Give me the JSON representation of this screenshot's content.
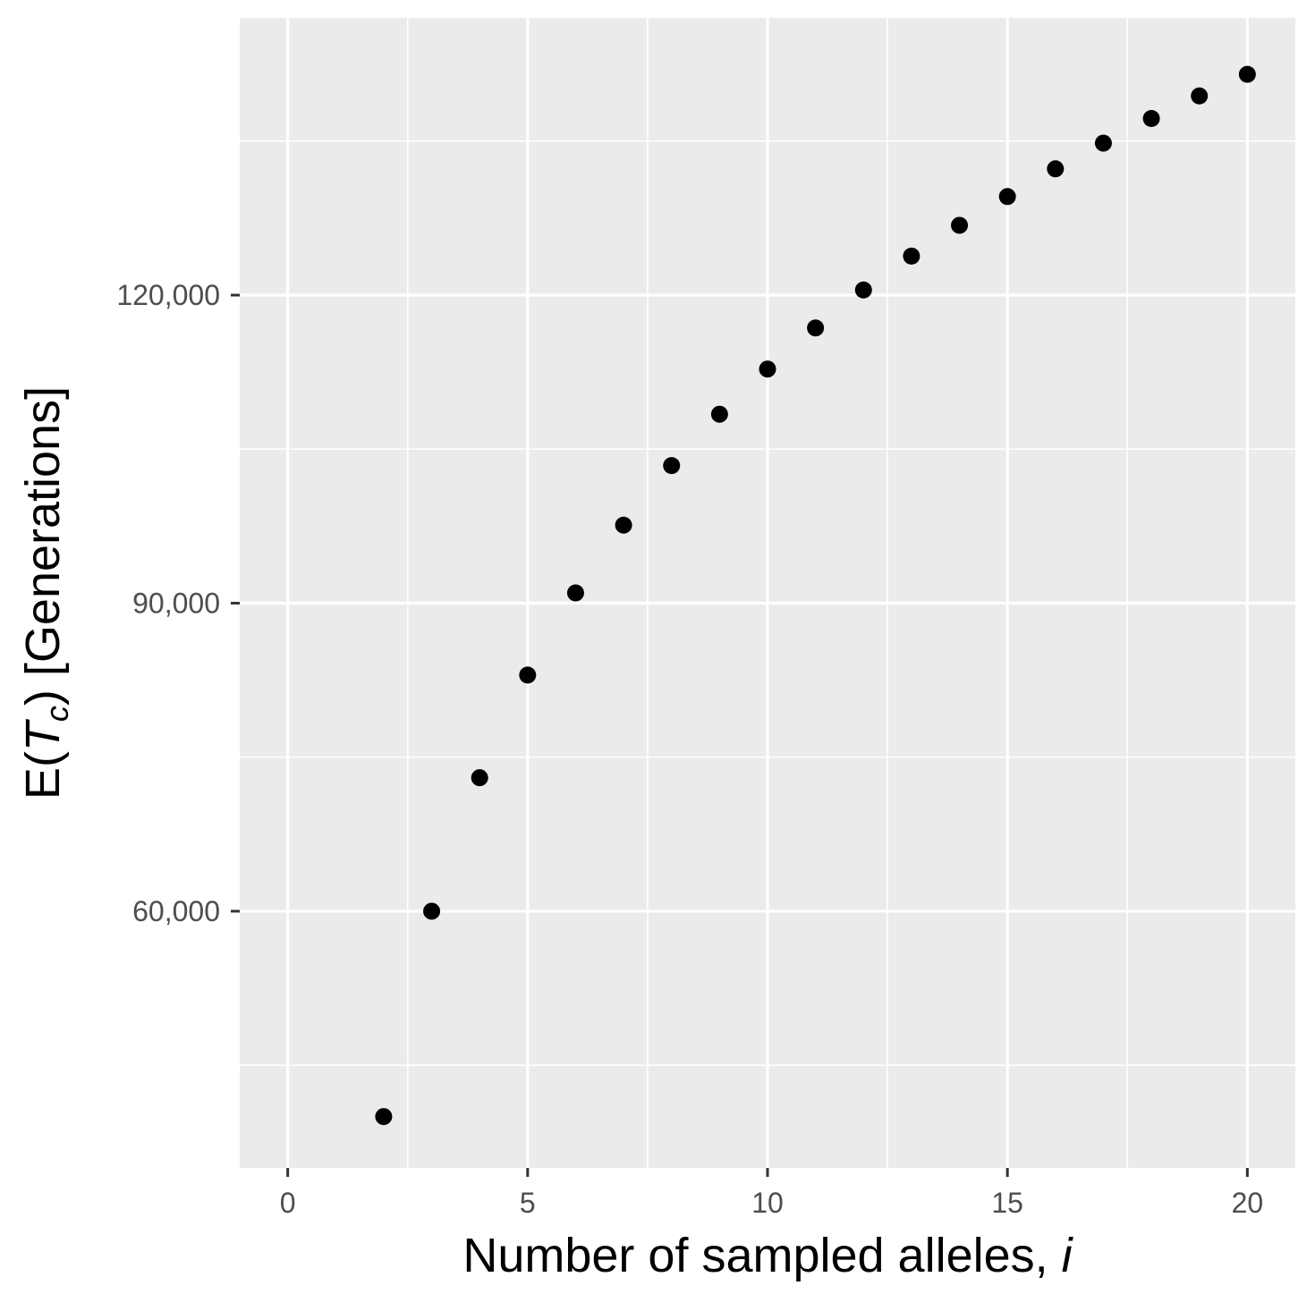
{
  "chart_data": {
    "type": "scatter",
    "title": "",
    "xlabel_parts": [
      "Number of sampled alleles, ",
      "i"
    ],
    "ylabel_parts": [
      "E(",
      "T",
      "c",
      ") [Generations]"
    ],
    "x": [
      2,
      3,
      4,
      5,
      6,
      7,
      8,
      9,
      10,
      11,
      12,
      13,
      14,
      15,
      16,
      17,
      18,
      19,
      20
    ],
    "y": [
      40000,
      60000,
      73000,
      83000,
      91000,
      97600,
      103400,
      108400,
      112800,
      116800,
      120500,
      123800,
      126800,
      129600,
      132300,
      134800,
      137200,
      139400,
      141500
    ],
    "xlim": [
      -1,
      21
    ],
    "ylim": [
      35000,
      147000
    ],
    "x_ticks": [
      0,
      5,
      10,
      15,
      20
    ],
    "x_tick_labels": [
      "0",
      "5",
      "10",
      "15",
      "20"
    ],
    "y_ticks": [
      60000,
      90000,
      120000
    ],
    "y_tick_labels": [
      "60,000",
      "90,000",
      "120,000"
    ],
    "grid": true,
    "legend": "none",
    "colors": {
      "panel_background": "#ebebeb",
      "grid": "#ffffff",
      "point": "#000000",
      "tick_text": "#4d4d4d",
      "axis_title": "#000000"
    }
  }
}
